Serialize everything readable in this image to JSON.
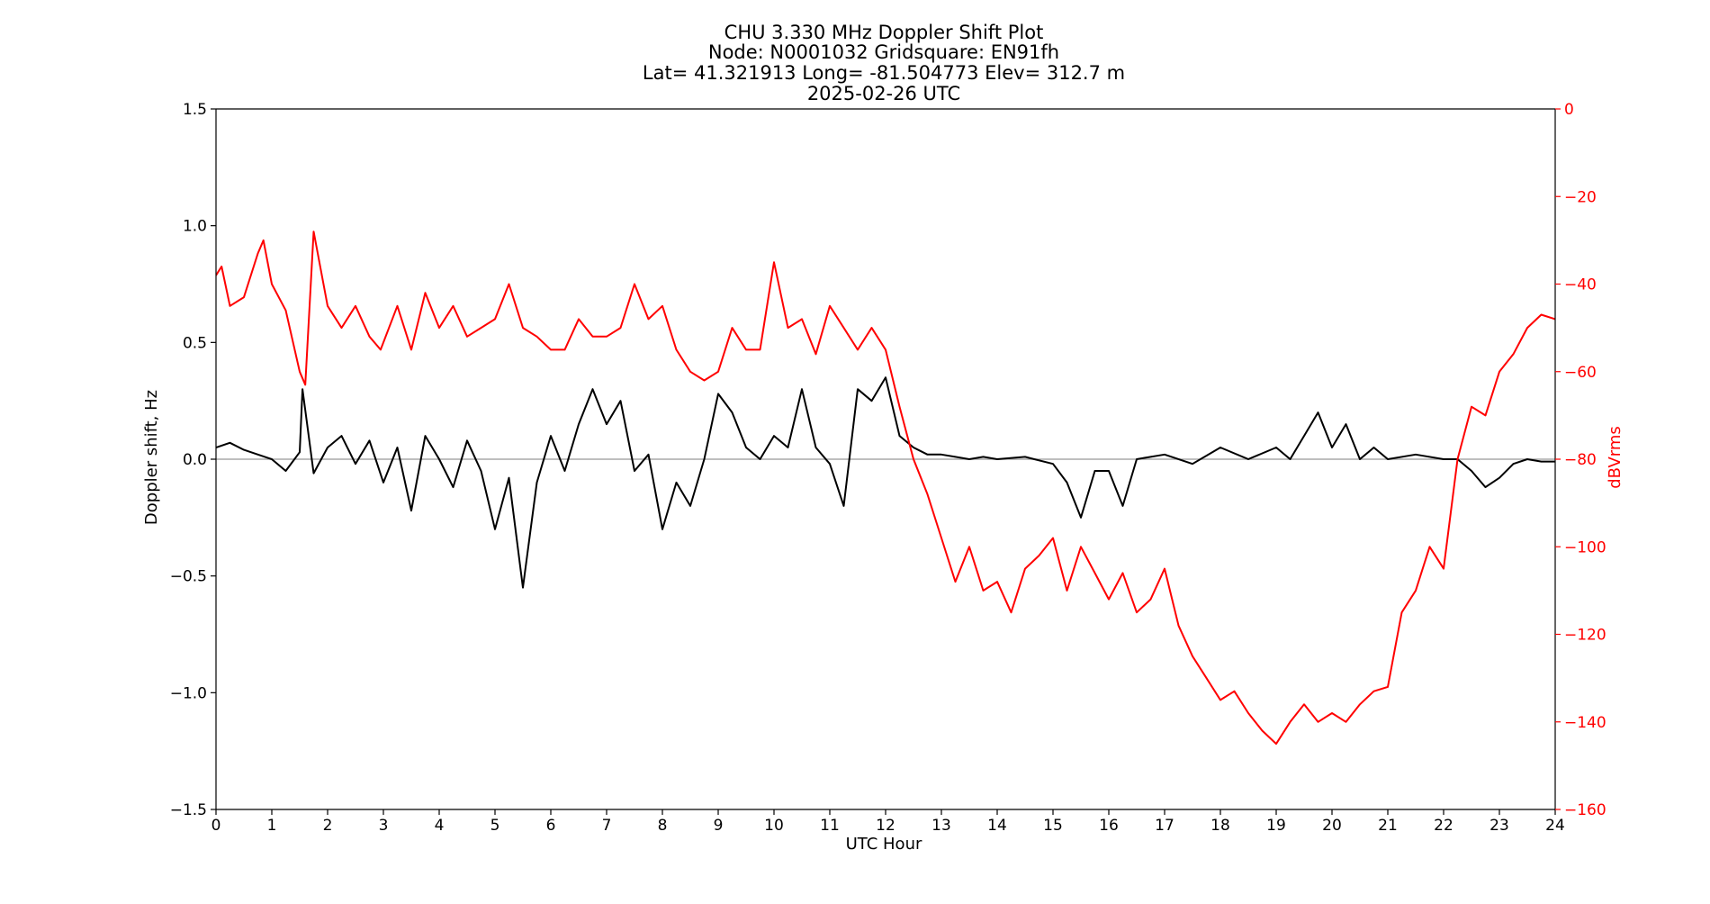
{
  "chart_data": {
    "type": "line",
    "title_lines": [
      "CHU 3.330 MHz Doppler Shift Plot",
      "Node:  N0001032      Gridsquare:  EN91fh",
      "Lat= 41.321913    Long= -81.504773    Elev= 312.7 m",
      "2025-02-26  UTC"
    ],
    "xlabel": "UTC Hour",
    "ylabel_left": "Doppler shift, Hz",
    "ylabel_right": "dBVrms",
    "xlim": [
      0,
      24
    ],
    "ylim_left": [
      -1.5,
      1.5
    ],
    "ylim_right": [
      -160,
      0
    ],
    "xticks": [
      "0",
      "1",
      "2",
      "3",
      "4",
      "5",
      "6",
      "7",
      "8",
      "9",
      "10",
      "11",
      "12",
      "13",
      "14",
      "15",
      "16",
      "17",
      "18",
      "19",
      "20",
      "21",
      "22",
      "23",
      "24"
    ],
    "yticks_left": [
      "1.5",
      "1.0",
      "0.5",
      "0.0",
      "−0.5",
      "−1.0",
      "−1.5"
    ],
    "yticks_right": [
      "0",
      "−20",
      "−40",
      "−60",
      "−80",
      "−100",
      "−120",
      "−140",
      "−160"
    ],
    "grid": false,
    "legend": "none",
    "reference_line": {
      "y": 0.0,
      "axis": "left",
      "color": "#aaaaaa"
    },
    "series": [
      {
        "axis": "left",
        "color": "#000000",
        "x": [
          0,
          0.25,
          0.5,
          0.75,
          1.0,
          1.25,
          1.5,
          1.55,
          1.75,
          2.0,
          2.25,
          2.5,
          2.75,
          3.0,
          3.25,
          3.5,
          3.75,
          4.0,
          4.25,
          4.5,
          4.75,
          5.0,
          5.25,
          5.5,
          5.75,
          6.0,
          6.25,
          6.5,
          6.75,
          7.0,
          7.25,
          7.5,
          7.75,
          8.0,
          8.25,
          8.5,
          8.75,
          9.0,
          9.25,
          9.5,
          9.75,
          10.0,
          10.25,
          10.5,
          10.75,
          11.0,
          11.25,
          11.5,
          11.75,
          12.0,
          12.25,
          12.5,
          12.75,
          13.0,
          13.25,
          13.5,
          13.75,
          14.0,
          14.5,
          15.0,
          15.25,
          15.5,
          15.75,
          16.0,
          16.25,
          16.5,
          17.0,
          17.5,
          18.0,
          18.5,
          19.0,
          19.25,
          19.5,
          19.75,
          20.0,
          20.25,
          20.5,
          20.75,
          21.0,
          21.5,
          22.0,
          22.25,
          22.5,
          22.75,
          23.0,
          23.25,
          23.5,
          23.75,
          24.0
        ],
        "y": [
          0.05,
          0.07,
          0.04,
          0.02,
          0.0,
          -0.05,
          0.03,
          0.3,
          -0.06,
          0.05,
          0.1,
          -0.02,
          0.08,
          -0.1,
          0.05,
          -0.22,
          0.1,
          0.0,
          -0.12,
          0.08,
          -0.05,
          -0.3,
          -0.08,
          -0.55,
          -0.1,
          0.1,
          -0.05,
          0.15,
          0.3,
          0.15,
          0.25,
          -0.05,
          0.02,
          -0.3,
          -0.1,
          -0.2,
          0.0,
          0.28,
          0.2,
          0.05,
          0.0,
          0.1,
          0.05,
          0.3,
          0.05,
          -0.02,
          -0.2,
          0.3,
          0.25,
          0.35,
          0.1,
          0.05,
          0.02,
          0.02,
          0.01,
          0.0,
          0.01,
          0.0,
          0.01,
          -0.02,
          -0.1,
          -0.25,
          -0.05,
          -0.05,
          -0.2,
          0.0,
          0.02,
          -0.02,
          0.05,
          0.0,
          0.05,
          0.0,
          0.1,
          0.2,
          0.05,
          0.15,
          0.0,
          0.05,
          0.0,
          0.02,
          0.0,
          0.0,
          -0.05,
          -0.12,
          -0.08,
          -0.02,
          0.0,
          -0.01,
          -0.01
        ]
      },
      {
        "axis": "right",
        "color": "#ff0000",
        "x": [
          0,
          0.1,
          0.25,
          0.5,
          0.75,
          0.85,
          1.0,
          1.25,
          1.5,
          1.6,
          1.75,
          2.0,
          2.25,
          2.5,
          2.75,
          2.95,
          3.25,
          3.5,
          3.75,
          4.0,
          4.25,
          4.5,
          4.75,
          5.0,
          5.25,
          5.5,
          5.75,
          6.0,
          6.25,
          6.5,
          6.75,
          7.0,
          7.25,
          7.5,
          7.75,
          8.0,
          8.25,
          8.5,
          8.75,
          9.0,
          9.25,
          9.5,
          9.75,
          10.0,
          10.25,
          10.5,
          10.75,
          11.0,
          11.25,
          11.5,
          11.75,
          12.0,
          12.25,
          12.5,
          12.75,
          13.0,
          13.25,
          13.5,
          13.75,
          14.0,
          14.25,
          14.5,
          14.75,
          15.0,
          15.25,
          15.5,
          15.75,
          16.0,
          16.25,
          16.5,
          16.75,
          17.0,
          17.25,
          17.5,
          17.75,
          18.0,
          18.25,
          18.5,
          18.75,
          19.0,
          19.25,
          19.5,
          19.75,
          20.0,
          20.25,
          20.5,
          20.75,
          21.0,
          21.25,
          21.5,
          21.75,
          22.0,
          22.25,
          22.5,
          22.75,
          23.0,
          23.25,
          23.5,
          23.75,
          24.0
        ],
        "y": [
          -38,
          -36,
          -45,
          -43,
          -33,
          -30,
          -40,
          -46,
          -60,
          -63,
          -28,
          -45,
          -50,
          -45,
          -52,
          -55,
          -45,
          -55,
          -42,
          -50,
          -45,
          -52,
          -50,
          -48,
          -40,
          -50,
          -52,
          -55,
          -55,
          -48,
          -52,
          -52,
          -50,
          -40,
          -48,
          -45,
          -55,
          -60,
          -62,
          -60,
          -50,
          -55,
          -55,
          -35,
          -50,
          -48,
          -56,
          -45,
          -50,
          -55,
          -50,
          -55,
          -68,
          -80,
          -88,
          -98,
          -108,
          -100,
          -110,
          -108,
          -115,
          -105,
          -102,
          -98,
          -110,
          -100,
          -106,
          -112,
          -106,
          -115,
          -112,
          -105,
          -118,
          -125,
          -130,
          -135,
          -133,
          -138,
          -142,
          -145,
          -140,
          -136,
          -140,
          -138,
          -140,
          -136,
          -133,
          -132,
          -115,
          -110,
          -100,
          -105,
          -80,
          -68,
          -70,
          -60,
          -56,
          -50,
          -47,
          -48
        ]
      }
    ]
  }
}
